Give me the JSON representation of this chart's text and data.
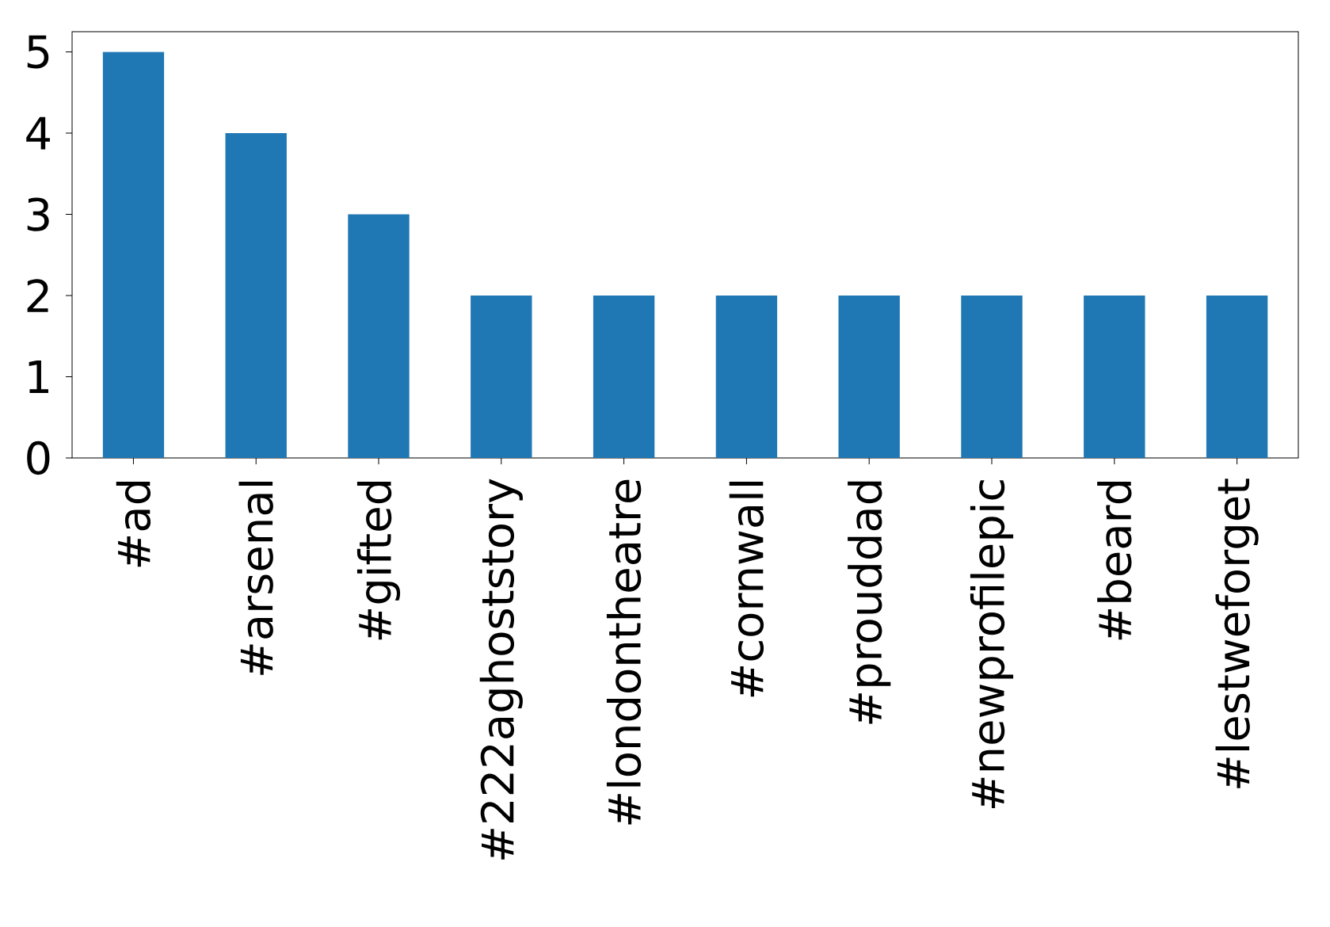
{
  "chart_data": {
    "type": "bar",
    "categories": [
      "#ad",
      "#arsenal",
      "#gifted",
      "#222aghoststory",
      "#londontheatre",
      "#cornwall",
      "#prouddad",
      "#newprofilepic",
      "#beard",
      "#lestweforget"
    ],
    "values": [
      5,
      4,
      3,
      2,
      2,
      2,
      2,
      2,
      2,
      2
    ],
    "color": "#1f77b4",
    "ylim": [
      0,
      5.25
    ],
    "yticks": [
      0,
      1,
      2,
      3,
      4,
      5
    ],
    "grid": false
  }
}
